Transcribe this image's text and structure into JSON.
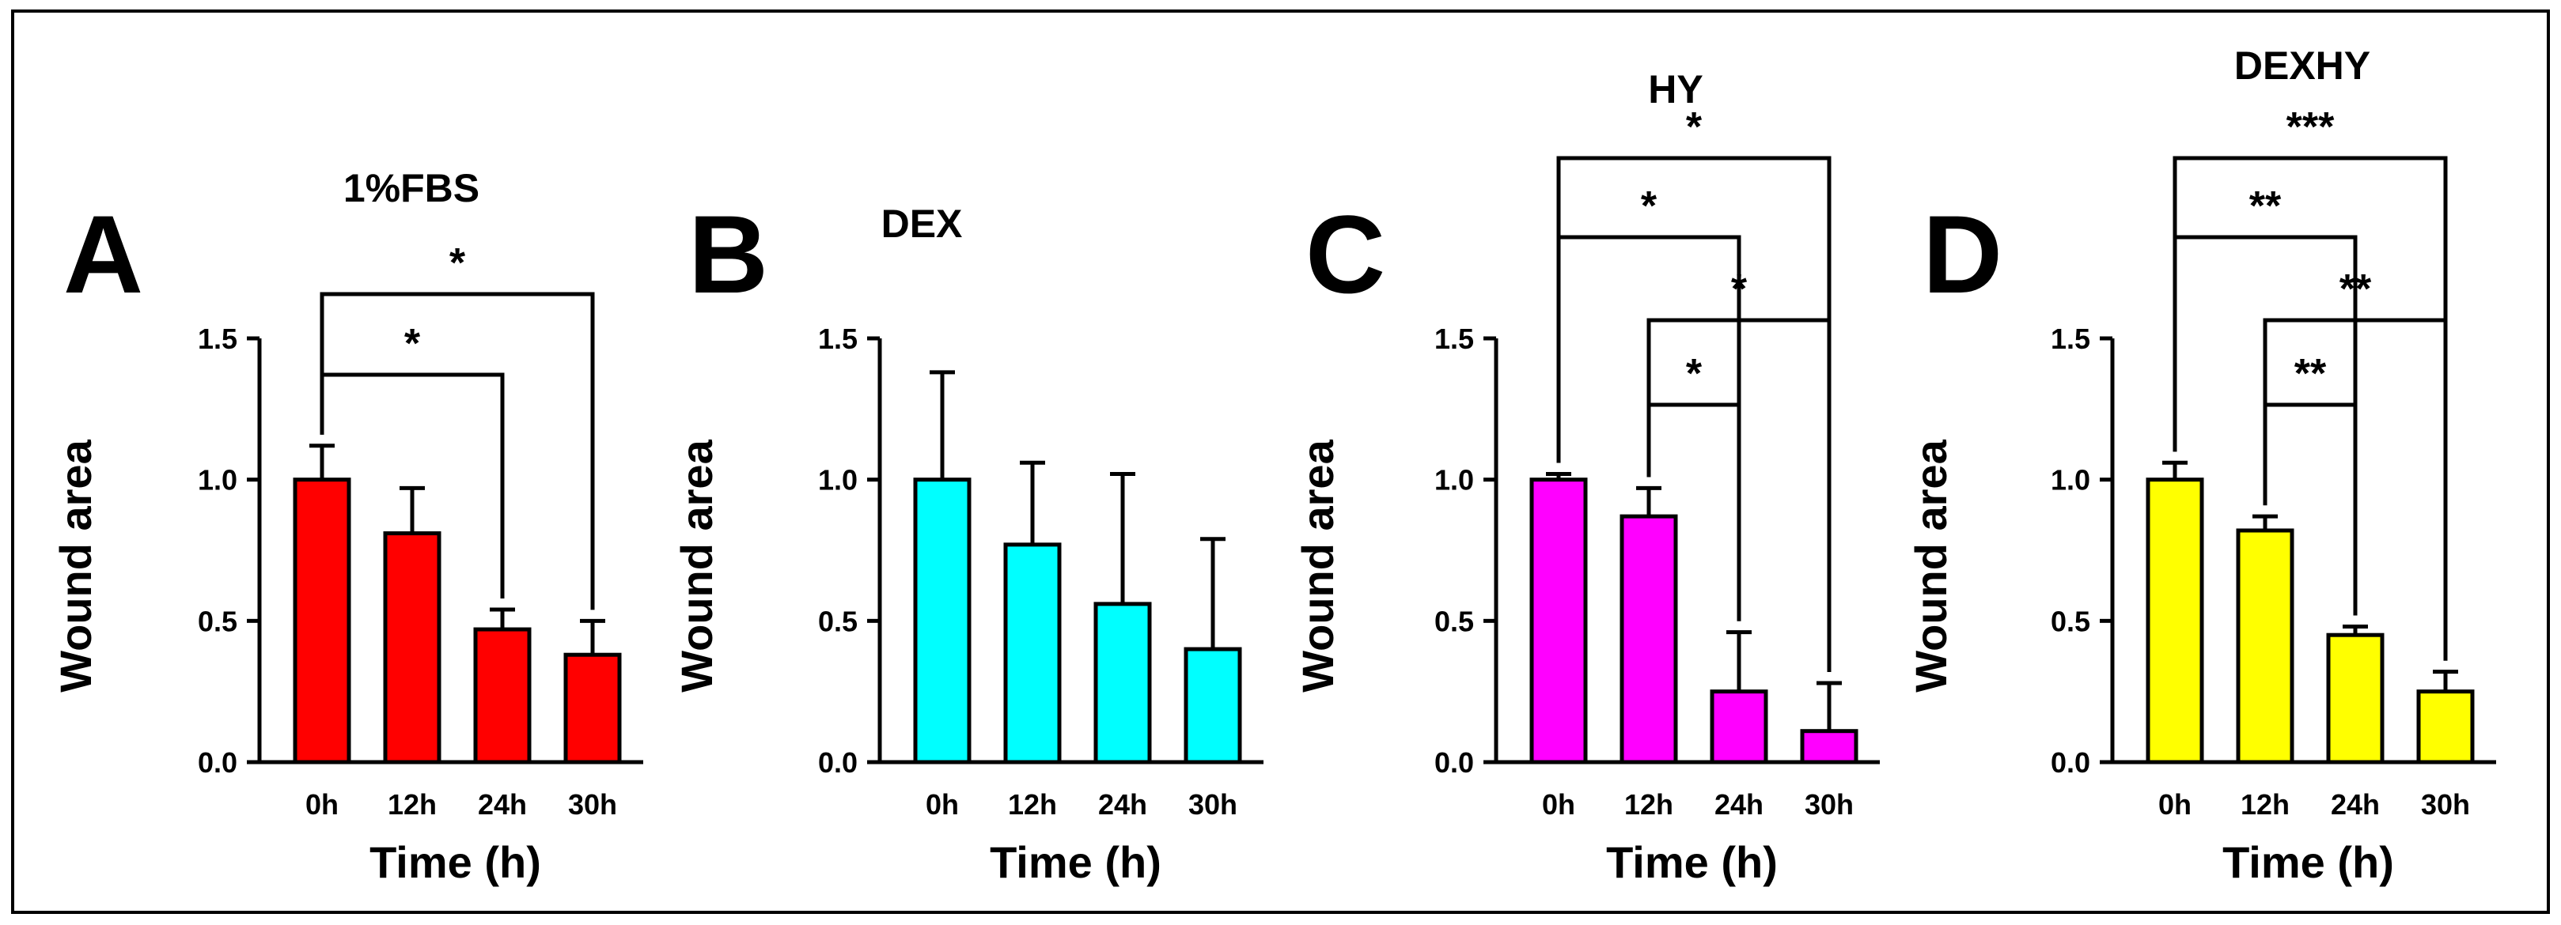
{
  "chart_data": [
    {
      "type": "bar",
      "panel_letter": "A",
      "title": "1%FBS",
      "categories": [
        "0h",
        "12h",
        "24h",
        "30h"
      ],
      "values": [
        1.0,
        0.81,
        0.47,
        0.38
      ],
      "errors": [
        0.12,
        0.16,
        0.07,
        0.12
      ],
      "color": "#ff0000",
      "xlabel": "Time (h)",
      "ylabel": "Wound area",
      "ylim": [
        0,
        1.5
      ],
      "yticks": [
        "0.0",
        "0.5",
        "1.0",
        "1.5"
      ],
      "significance": [
        {
          "from": 0,
          "to": 3,
          "label": "*"
        },
        {
          "from": 0,
          "to": 2,
          "label": "*"
        }
      ]
    },
    {
      "type": "bar",
      "panel_letter": "B",
      "title": "DEX",
      "categories": [
        "0h",
        "12h",
        "24h",
        "30h"
      ],
      "values": [
        1.0,
        0.77,
        0.56,
        0.4
      ],
      "errors": [
        0.38,
        0.29,
        0.46,
        0.39
      ],
      "color": "#00ffff",
      "xlabel": "Time (h)",
      "ylabel": "Wound area",
      "ylim": [
        0,
        1.5
      ],
      "yticks": [
        "0.0",
        "0.5",
        "1.0",
        "1.5"
      ],
      "significance": []
    },
    {
      "type": "bar",
      "panel_letter": "C",
      "title": "HY",
      "categories": [
        "0h",
        "12h",
        "24h",
        "30h"
      ],
      "values": [
        1.0,
        0.87,
        0.25,
        0.11
      ],
      "errors": [
        0.02,
        0.1,
        0.21,
        0.17
      ],
      "color": "#ff00ff",
      "xlabel": "Time (h)",
      "ylabel": "Wound area",
      "ylim": [
        0,
        1.5
      ],
      "yticks": [
        "0.0",
        "0.5",
        "1.0",
        "1.5"
      ],
      "significance": [
        {
          "from": 0,
          "to": 3,
          "label": "*"
        },
        {
          "from": 1,
          "to": 3,
          "label": "*"
        },
        {
          "from": 0,
          "to": 2,
          "label": "*"
        },
        {
          "from": 1,
          "to": 2,
          "label": "*"
        }
      ]
    },
    {
      "type": "bar",
      "panel_letter": "D",
      "title": "DEXHY",
      "categories": [
        "0h",
        "12h",
        "24h",
        "30h"
      ],
      "values": [
        1.0,
        0.82,
        0.45,
        0.25
      ],
      "errors": [
        0.06,
        0.05,
        0.03,
        0.07
      ],
      "color": "#ffff00",
      "xlabel": "Time (h)",
      "ylabel": "Wound area",
      "ylim": [
        0,
        1.5
      ],
      "yticks": [
        "0.0",
        "0.5",
        "1.0",
        "1.5"
      ],
      "significance": [
        {
          "from": 0,
          "to": 3,
          "label": "***"
        },
        {
          "from": 1,
          "to": 3,
          "label": "**"
        },
        {
          "from": 0,
          "to": 2,
          "label": "**"
        },
        {
          "from": 1,
          "to": 2,
          "label": "**"
        }
      ]
    }
  ]
}
